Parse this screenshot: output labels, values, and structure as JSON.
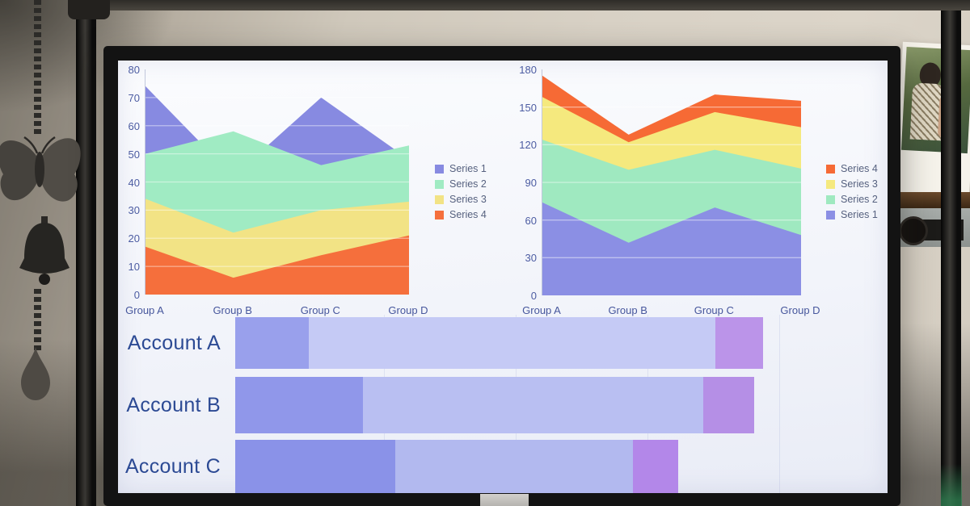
{
  "scene": {
    "wall_color": "#cfc8bb",
    "monitor_bezel_color": "#131313",
    "monitor_stand_color": "#c6c4c0",
    "pole_color": "#1a1a1a",
    "ornament_color": "#3e3b37",
    "shelf_color": "#5a3a22",
    "glow_color": "#2e7d4f"
  },
  "chart_data": [
    {
      "id": "area-left",
      "type": "area",
      "mode": "overlay",
      "title": "",
      "categories": [
        "Group A",
        "Group B",
        "Group C",
        "Group D"
      ],
      "series": [
        {
          "name": "Series 1",
          "color": "#878ae1",
          "values": [
            74,
            42,
            70,
            48
          ]
        },
        {
          "name": "Series 2",
          "color": "#a0ebc3",
          "values": [
            50,
            58,
            46,
            53
          ]
        },
        {
          "name": "Series 3",
          "color": "#f2e385",
          "values": [
            34,
            22,
            30,
            33
          ]
        },
        {
          "name": "Series 4",
          "color": "#f56f3c",
          "values": [
            17,
            6,
            14,
            21
          ]
        }
      ],
      "legend_order": [
        0,
        1,
        2,
        3
      ],
      "legend_position": "right",
      "ylim": [
        0,
        80
      ],
      "grid_step": 10,
      "grid": true,
      "yticks": [
        "80",
        "70",
        "60",
        "50",
        "40",
        "30",
        "20",
        "10",
        "0"
      ]
    },
    {
      "id": "area-right",
      "type": "area",
      "mode": "stacked",
      "title": "",
      "categories": [
        "Group A",
        "Group B",
        "Group C",
        "Group D"
      ],
      "series": [
        {
          "name": "Series 1",
          "color": "#8b8fe4",
          "values": [
            74,
            42,
            70,
            48
          ]
        },
        {
          "name": "Series 2",
          "color": "#9fe9c0",
          "values": [
            50,
            58,
            46,
            53
          ]
        },
        {
          "name": "Series 3",
          "color": "#f5e97e",
          "values": [
            34,
            22,
            30,
            33
          ]
        },
        {
          "name": "Series 4",
          "color": "#f66a35",
          "values": [
            17,
            6,
            14,
            21
          ]
        }
      ],
      "stacked_totals": [
        175,
        128,
        160,
        155
      ],
      "legend_order": [
        3,
        2,
        1,
        0
      ],
      "legend_position": "right",
      "ylim": [
        0,
        180
      ],
      "grid_step": 30,
      "grid": true,
      "yticks": [
        "180",
        "150",
        "120",
        "90",
        "60",
        "30",
        "0"
      ]
    },
    {
      "id": "bars",
      "type": "bar",
      "orientation": "horizontal",
      "units": "px-on-screen",
      "categories": [
        "Account A",
        "Account B",
        "Account C"
      ],
      "rows": [
        {
          "label": "Account A",
          "values": [
            91,
            503,
            59
          ],
          "colors": [
            "#99a0ec",
            "#c5caf5",
            "#bb94e9"
          ]
        },
        {
          "label": "Account B",
          "values": [
            158,
            421,
            63
          ],
          "colors": [
            "#9097ea",
            "#b9bff2",
            "#b58fe6"
          ]
        },
        {
          "label": "Account C",
          "values": [
            198,
            294,
            56
          ],
          "colors": [
            "#8a92e8",
            "#b2b9ef",
            "#b387e9"
          ]
        }
      ]
    }
  ]
}
